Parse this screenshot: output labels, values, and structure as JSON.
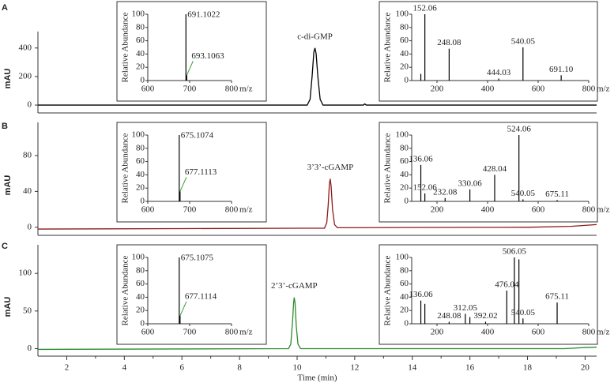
{
  "chart_data": [
    {
      "type": "line",
      "panel": "A",
      "y_label": "mAU",
      "peak_label": "c-di-GMP",
      "xlim": [
        1,
        20.4
      ],
      "ylim": [
        -55,
        515
      ],
      "yticks": [
        0,
        200,
        400
      ],
      "series": [
        {
          "color": "#000000",
          "x": [
            1,
            10.35,
            10.45,
            10.52,
            10.58,
            10.62,
            10.66,
            10.72,
            10.8,
            10.9,
            12.3,
            12.35,
            12.4,
            20.4
          ],
          "values": [
            0,
            0,
            40,
            200,
            370,
            400,
            360,
            200,
            40,
            0,
            0,
            8,
            0,
            0
          ]
        }
      ],
      "insets": [
        {
          "type": "stem",
          "y_label": "Relative Abundance",
          "x_label": "m/z",
          "xlim": [
            600,
            800
          ],
          "xticks": [
            600,
            700,
            800
          ],
          "ylim": [
            0,
            100
          ],
          "yticks": [
            0,
            20,
            40,
            60,
            80,
            100
          ],
          "x": [
            691.1022,
            693.1063
          ],
          "values": [
            100,
            8
          ],
          "x_labels": [
            "691.1022",
            "693.1063"
          ]
        },
        {
          "type": "stem",
          "y_label": "Relative Abundance",
          "x_label": "m/z",
          "xlim": [
            100,
            800
          ],
          "xticks": [
            200,
            400,
            600,
            800
          ],
          "ylim": [
            0,
            100
          ],
          "yticks": [
            0,
            20,
            40,
            60,
            80,
            100
          ],
          "x": [
            136,
            152.06,
            248.08,
            444.03,
            540.05,
            691.1
          ],
          "values": [
            10,
            100,
            48,
            3,
            50,
            8
          ],
          "x_labels": [
            null,
            "152.06",
            "248.08",
            "444.03",
            "540.05",
            "691.10"
          ]
        }
      ]
    },
    {
      "type": "line",
      "panel": "B",
      "y_label": "mAU",
      "peak_label": "3’3’-cGAMP",
      "xlim": [
        1,
        20.4
      ],
      "ylim": [
        -9,
        117
      ],
      "yticks": [
        0,
        40,
        80
      ],
      "series": [
        {
          "color": "#8b1a1a",
          "x": [
            1,
            6,
            10.95,
            11.03,
            11.08,
            11.12,
            11.15,
            11.18,
            11.23,
            11.3,
            11.4,
            18,
            19.5,
            20.4
          ],
          "values": [
            -2,
            -1.5,
            -1,
            5,
            25,
            48,
            54,
            46,
            20,
            3,
            -0.5,
            0,
            1,
            3
          ]
        }
      ],
      "insets": [
        {
          "type": "stem",
          "y_label": "Relative Abundance",
          "x_label": "m/z",
          "xlim": [
            600,
            800
          ],
          "xticks": [
            600,
            700,
            800
          ],
          "ylim": [
            0,
            100
          ],
          "yticks": [
            0,
            20,
            40,
            60,
            80,
            100
          ],
          "x": [
            675.1074,
            677.1113
          ],
          "values": [
            100,
            15
          ],
          "x_labels": [
            "675.1074",
            "677.1113"
          ]
        },
        {
          "type": "stem",
          "y_label": "Relative Abundance",
          "x_label": "m/z",
          "xlim": [
            100,
            800
          ],
          "xticks": [
            200,
            400,
            600,
            800
          ],
          "ylim": [
            0,
            100
          ],
          "yticks": [
            0,
            20,
            40,
            60,
            80,
            100
          ],
          "x": [
            136.06,
            152.06,
            232.08,
            330.06,
            428.04,
            524.06,
            540.05,
            675.11
          ],
          "values": [
            55,
            12,
            5,
            18,
            40,
            100,
            3,
            2
          ],
          "x_labels": [
            "136.06",
            "152.06",
            "232.08",
            "330.06",
            "428.04",
            "524.06",
            "540.05",
            "675.11"
          ]
        }
      ]
    },
    {
      "type": "line",
      "panel": "C",
      "y_label": "mAU",
      "peak_label": "2’3’-cGAMP",
      "x_label": "Time (min)",
      "xlim": [
        1,
        20.4
      ],
      "ylim": [
        -10,
        138
      ],
      "yticks": [
        0,
        50,
        100
      ],
      "xticks": [
        2,
        4,
        6,
        8,
        10,
        12,
        14,
        16,
        18,
        20
      ],
      "minor_xticks": [
        3,
        5,
        7,
        9,
        11,
        13,
        15,
        17,
        19
      ],
      "series": [
        {
          "color": "#2e8b2e",
          "x": [
            1,
            9.7,
            9.78,
            9.84,
            9.88,
            9.9,
            9.93,
            9.97,
            10.03,
            10.12,
            19.3,
            20,
            20.4
          ],
          "values": [
            -1,
            0,
            6,
            35,
            62,
            68,
            60,
            30,
            6,
            0,
            0,
            1.5,
            2
          ]
        }
      ],
      "insets": [
        {
          "type": "stem",
          "y_label": "Relative Abundance",
          "x_label": "m/z",
          "xlim": [
            600,
            800
          ],
          "xticks": [
            600,
            700,
            800
          ],
          "ylim": [
            0,
            100
          ],
          "yticks": [
            0,
            20,
            40,
            60,
            80,
            100
          ],
          "x": [
            675.1075,
            677.1114
          ],
          "values": [
            100,
            12
          ],
          "x_labels": [
            "675.1075",
            "677.1114"
          ]
        },
        {
          "type": "stem",
          "y_label": "Relative Abundance",
          "x_label": "m/z",
          "xlim": [
            100,
            800
          ],
          "xticks": [
            200,
            400,
            600,
            800
          ],
          "ylim": [
            0,
            100
          ],
          "yticks": [
            0,
            20,
            40,
            60,
            80,
            100
          ],
          "x": [
            136.06,
            152,
            248.08,
            312.05,
            330,
            392.02,
            476.04,
            506.05,
            524,
            540.05,
            675.11
          ],
          "values": [
            35,
            30,
            3,
            15,
            10,
            3,
            50,
            100,
            97,
            8,
            32
          ],
          "x_labels": [
            "136.06",
            null,
            "248.08",
            "312.05",
            null,
            "392.02",
            "476.04",
            "506.05",
            null,
            "540.05",
            "675.11"
          ]
        }
      ]
    }
  ]
}
